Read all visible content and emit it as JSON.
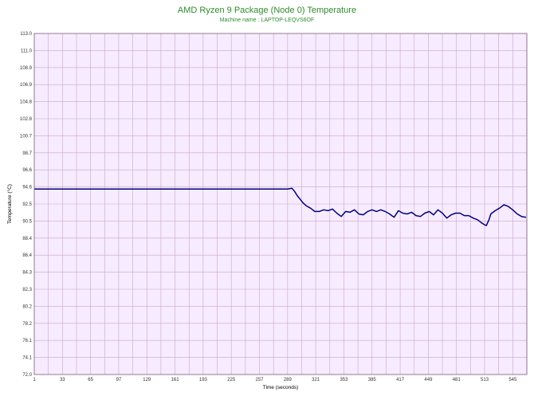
{
  "chart_data": {
    "type": "line",
    "title": "AMD Ryzen 9 Package (Node 0) Temperature",
    "subtitle": "Machine name : LAPTOP-LEQVS6OF",
    "xlabel": "Time (seconds)",
    "ylabel": "Temperature (°C)",
    "xlim": [
      1,
      561
    ],
    "ylim": [
      72.0,
      113.0
    ],
    "x_ticks": [
      "1",
      "33",
      "65",
      "97",
      "129",
      "161",
      "193",
      "225",
      "257",
      "289",
      "321",
      "353",
      "385",
      "417",
      "449",
      "481",
      "513",
      "545"
    ],
    "y_ticks": [
      "113.0",
      "111.0",
      "108.9",
      "106.9",
      "104.8",
      "102.8",
      "100.7",
      "98.7",
      "96.6",
      "94.6",
      "92.5",
      "90.5",
      "88.4",
      "86.4",
      "84.3",
      "82.3",
      "80.2",
      "78.2",
      "76.1",
      "74.1",
      "72.0"
    ],
    "grid": true,
    "colors": {
      "line": "#000080",
      "plot_bg": "#f7ebff",
      "grid": "#c9a6c9",
      "title": "#2e8b2e"
    },
    "series": [
      {
        "x": [
          1,
          50,
          100,
          150,
          200,
          250,
          289,
          294,
          297,
          300,
          303,
          306,
          310,
          315,
          320,
          325,
          330,
          335,
          340,
          345,
          350,
          355,
          360,
          365,
          370,
          375,
          380,
          385,
          390,
          395,
          400,
          405,
          410,
          415,
          420,
          425,
          430,
          435,
          440,
          445,
          450,
          455,
          460,
          465,
          470,
          475,
          480,
          485,
          490,
          495,
          500,
          505,
          510,
          513,
          515,
          518,
          520,
          525,
          530,
          535,
          540,
          545,
          550,
          555,
          560
        ],
        "values": [
          94.3,
          94.3,
          94.3,
          94.3,
          94.3,
          94.3,
          94.3,
          94.4,
          94.0,
          93.5,
          93.1,
          92.7,
          92.3,
          92.0,
          91.6,
          91.6,
          91.8,
          91.7,
          91.9,
          91.4,
          91.0,
          91.6,
          91.5,
          91.8,
          91.3,
          91.2,
          91.6,
          91.8,
          91.6,
          91.8,
          91.6,
          91.3,
          90.9,
          91.7,
          91.4,
          91.3,
          91.5,
          91.1,
          91.0,
          91.4,
          91.6,
          91.2,
          91.8,
          91.4,
          90.8,
          91.2,
          91.4,
          91.4,
          91.1,
          91.1,
          90.8,
          90.6,
          90.2,
          90.0,
          89.9,
          90.6,
          91.3,
          91.7,
          92.0,
          92.4,
          92.2,
          91.8,
          91.3,
          91.0,
          90.9
        ]
      }
    ]
  }
}
